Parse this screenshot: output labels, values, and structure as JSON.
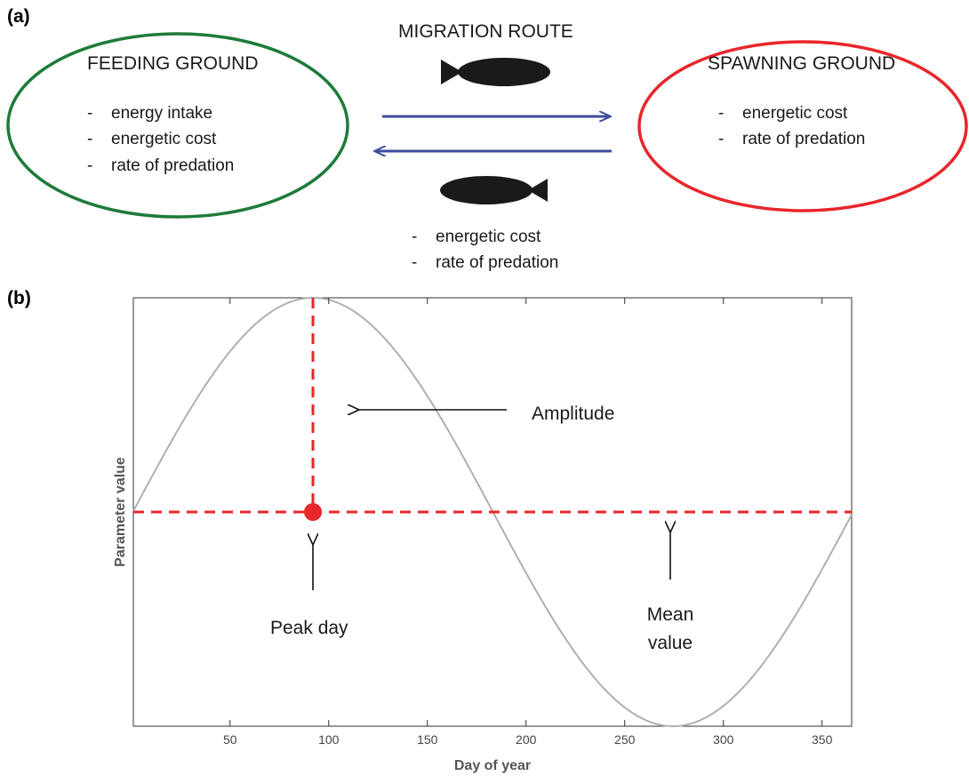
{
  "panel_a": {
    "label": "(a)",
    "feeding": {
      "title": "FEEDING GROUND",
      "items": [
        "energy intake",
        "energetic cost",
        "rate of predation"
      ],
      "color": "#1e7b3a"
    },
    "spawning": {
      "title": "SPAWNING GROUND",
      "items": [
        "energetic cost",
        "rate of predation"
      ],
      "color": "#e8262b"
    },
    "route": {
      "title": "MIGRATION ROUTE",
      "items": [
        "energetic cost",
        "rate of predation"
      ],
      "arrow_color": "#3f4c9e",
      "fish_icon": "fish-icon"
    }
  },
  "panel_b": {
    "label": "(b)",
    "annotations": {
      "amplitude": "Amplitude",
      "peak_day": "Peak day",
      "mean_line1": "Mean",
      "mean_line2": "value"
    },
    "chart_data": {
      "type": "line",
      "xlabel": "Day of year",
      "ylabel": "Parameter value",
      "xlim": [
        1,
        365
      ],
      "ylim": [
        -1,
        1
      ],
      "xticks": [
        50,
        100,
        150,
        200,
        250,
        300,
        350
      ],
      "series": [
        {
          "kind": "sinusoid",
          "mean": 0,
          "amplitude": 1,
          "period": 365,
          "peak_day": 92,
          "color": "#b0b0b0"
        }
      ],
      "mean_value": 0,
      "peak_marker": {
        "x": 92,
        "y": 0,
        "color": "#e8262b"
      },
      "reference_color": "#e8262b",
      "grid": false
    }
  }
}
